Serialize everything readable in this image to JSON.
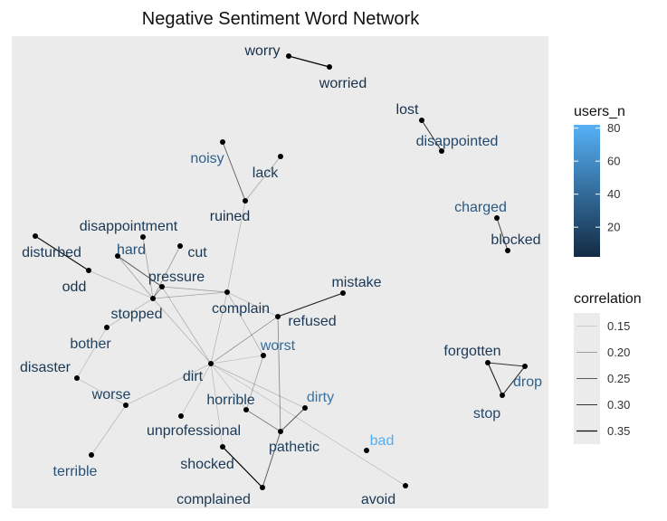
{
  "chart_data": {
    "type": "network",
    "title": "Negative Sentiment Word Network",
    "nodes": [
      {
        "id": "worry",
        "users_n": 5
      },
      {
        "id": "worried",
        "users_n": 5
      },
      {
        "id": "lost",
        "users_n": 5
      },
      {
        "id": "disappointed",
        "users_n": 20
      },
      {
        "id": "noisy",
        "users_n": 35
      },
      {
        "id": "lack",
        "users_n": 10
      },
      {
        "id": "ruined",
        "users_n": 5
      },
      {
        "id": "charged",
        "users_n": 30
      },
      {
        "id": "blocked",
        "users_n": 10
      },
      {
        "id": "disappointment",
        "users_n": 10
      },
      {
        "id": "disturbed",
        "users_n": 10
      },
      {
        "id": "hard",
        "users_n": 25
      },
      {
        "id": "cut",
        "users_n": 10
      },
      {
        "id": "pressure",
        "users_n": 10
      },
      {
        "id": "odd",
        "users_n": 5
      },
      {
        "id": "mistake",
        "users_n": 10
      },
      {
        "id": "stopped",
        "users_n": 10
      },
      {
        "id": "complain",
        "users_n": 10
      },
      {
        "id": "refused",
        "users_n": 10
      },
      {
        "id": "bother",
        "users_n": 15
      },
      {
        "id": "worst",
        "users_n": 40
      },
      {
        "id": "disaster",
        "users_n": 10
      },
      {
        "id": "dirt",
        "users_n": 10
      },
      {
        "id": "forgotten",
        "users_n": 10
      },
      {
        "id": "drop",
        "users_n": 35
      },
      {
        "id": "worse",
        "users_n": 15
      },
      {
        "id": "horrible",
        "users_n": 15
      },
      {
        "id": "dirty",
        "users_n": 45
      },
      {
        "id": "stop",
        "users_n": 20
      },
      {
        "id": "unprofessional",
        "users_n": 10
      },
      {
        "id": "bad",
        "users_n": 80
      },
      {
        "id": "pathetic",
        "users_n": 15
      },
      {
        "id": "terrible",
        "users_n": 25
      },
      {
        "id": "shocked",
        "users_n": 10
      },
      {
        "id": "complained",
        "users_n": 10
      },
      {
        "id": "avoid",
        "users_n": 10
      }
    ],
    "edges": [
      {
        "source": "worry",
        "target": "worried",
        "correlation": 0.36
      },
      {
        "source": "lost",
        "target": "disappointed",
        "correlation": 0.3
      },
      {
        "source": "noisy",
        "target": "ruined",
        "correlation": 0.25
      },
      {
        "source": "lack",
        "target": "ruined",
        "correlation": 0.17
      },
      {
        "source": "ruined",
        "target": "complain",
        "correlation": 0.16
      },
      {
        "source": "charged",
        "target": "blocked",
        "correlation": 0.28
      },
      {
        "source": "disturbed",
        "target": "odd",
        "correlation": 0.34
      },
      {
        "source": "disappointment",
        "target": "stopped",
        "correlation": 0.18
      },
      {
        "source": "hard",
        "target": "pressure",
        "correlation": 0.27
      },
      {
        "source": "hard",
        "target": "stopped",
        "correlation": 0.18
      },
      {
        "source": "cut",
        "target": "stopped",
        "correlation": 0.2
      },
      {
        "source": "pressure",
        "target": "stopped",
        "correlation": 0.22
      },
      {
        "source": "pressure",
        "target": "complain",
        "correlation": 0.18
      },
      {
        "source": "pressure",
        "target": "dirt",
        "correlation": 0.17
      },
      {
        "source": "odd",
        "target": "stopped",
        "correlation": 0.16
      },
      {
        "source": "stopped",
        "target": "complain",
        "correlation": 0.17
      },
      {
        "source": "stopped",
        "target": "bother",
        "correlation": 0.16
      },
      {
        "source": "stopped",
        "target": "dirt",
        "correlation": 0.16
      },
      {
        "source": "complain",
        "target": "refused",
        "correlation": 0.16
      },
      {
        "source": "complain",
        "target": "worst",
        "correlation": 0.17
      },
      {
        "source": "complain",
        "target": "dirt",
        "correlation": 0.16
      },
      {
        "source": "mistake",
        "target": "refused",
        "correlation": 0.33
      },
      {
        "source": "refused",
        "target": "dirt",
        "correlation": 0.2
      },
      {
        "source": "refused",
        "target": "pathetic",
        "correlation": 0.21
      },
      {
        "source": "worst",
        "target": "dirt",
        "correlation": 0.15
      },
      {
        "source": "worst",
        "target": "horrible",
        "correlation": 0.18
      },
      {
        "source": "bother",
        "target": "disaster",
        "correlation": 0.15
      },
      {
        "source": "disaster",
        "target": "worse",
        "correlation": 0.15
      },
      {
        "source": "worse",
        "target": "dirt",
        "correlation": 0.16
      },
      {
        "source": "worse",
        "target": "terrible",
        "correlation": 0.16
      },
      {
        "source": "dirt",
        "target": "unprofessional",
        "correlation": 0.15
      },
      {
        "source": "dirt",
        "target": "horrible",
        "correlation": 0.15
      },
      {
        "source": "dirt",
        "target": "shocked",
        "correlation": 0.15
      },
      {
        "source": "dirt",
        "target": "dirty",
        "correlation": 0.16
      },
      {
        "source": "dirt",
        "target": "avoid",
        "correlation": 0.15
      },
      {
        "source": "horrible",
        "target": "pathetic",
        "correlation": 0.22
      },
      {
        "source": "dirty",
        "target": "pathetic",
        "correlation": 0.26
      },
      {
        "source": "pathetic",
        "target": "complained",
        "correlation": 0.26
      },
      {
        "source": "shocked",
        "target": "complained",
        "correlation": 0.36
      },
      {
        "source": "forgotten",
        "target": "drop",
        "correlation": 0.3
      },
      {
        "source": "forgotten",
        "target": "stop",
        "correlation": 0.32
      },
      {
        "source": "drop",
        "target": "stop",
        "correlation": 0.3
      }
    ],
    "legend_color": {
      "title": "users_n",
      "ticks": [
        20,
        40,
        60,
        80
      ],
      "range": [
        2,
        82
      ],
      "low_color": "#132B43",
      "high_color": "#56B1F7"
    },
    "legend_correlation": {
      "title": "correlation",
      "values": [
        0.15,
        0.2,
        0.25,
        0.3,
        0.35
      ],
      "labels": [
        "0.15",
        "0.20",
        "0.25",
        "0.30",
        "0.35"
      ]
    },
    "panel_background": "#EBEBEB"
  }
}
